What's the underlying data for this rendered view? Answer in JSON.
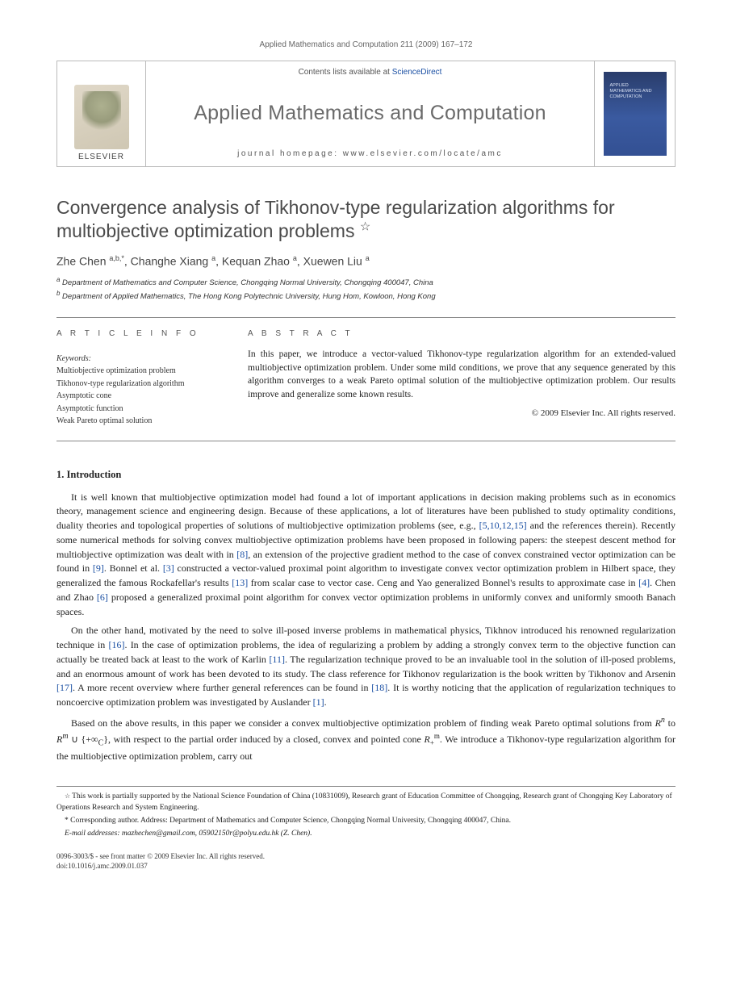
{
  "running_head": "Applied Mathematics and Computation 211 (2009) 167–172",
  "banner": {
    "contents_line_prefix": "Contents lists available at ",
    "contents_link": "ScienceDirect",
    "journal_name": "Applied Mathematics and Computation",
    "homepage_line": "journal homepage: www.elsevier.com/locate/amc",
    "elsevier": "ELSEVIER",
    "cover_text": "APPLIED MATHEMATICS AND COMPUTATION"
  },
  "title": "Convergence analysis of Tikhonov-type regularization algorithms for multiobjective optimization problems",
  "title_star": "☆",
  "authors_html": "Zhe Chen <sup>a,b,*</sup>, Changhe Xiang <sup>a</sup>, Kequan Zhao <sup>a</sup>, Xuewen Liu <sup>a</sup>",
  "affiliations": {
    "a": "Department of Mathematics and Computer Science, Chongqing Normal University, Chongqing 400047, China",
    "b": "Department of Applied Mathematics, The Hong Kong Polytechnic University, Hung Hom, Kowloon, Hong Kong"
  },
  "article_info_hd": "A R T I C L E   I N F O",
  "abstract_hd": "A B S T R A C T",
  "keywords_label": "Keywords:",
  "keywords": [
    "Multiobjective optimization problem",
    "Tikhonov-type regularization algorithm",
    "Asymptotic cone",
    "Asymptotic function",
    "Weak Pareto optimal solution"
  ],
  "abstract": "In this paper, we introduce a vector-valued Tikhonov-type regularization algorithm for an extended-valued multiobjective optimization problem. Under some mild conditions, we prove that any sequence generated by this algorithm converges to a weak Pareto optimal solution of the multiobjective optimization problem. Our results improve and generalize some known results.",
  "copyright_line": "© 2009 Elsevier Inc. All rights reserved.",
  "section1_head": "1. Introduction",
  "para1": "It is well known that multiobjective optimization model had found a lot of important applications in decision making problems such as in economics theory, management science and engineering design. Because of these applications, a lot of literatures have been published to study optimality conditions, duality theories and topological properties of solutions of multiobjective optimization problems (see, e.g., [5,10,12,15] and the references therein). Recently some numerical methods for solving convex multiobjective optimization problems have been proposed in following papers: the steepest descent method for multiobjective optimization was dealt with in [8], an extension of the projective gradient method to the case of convex constrained vector optimization can be found in [9]. Bonnel et al. [3] constructed a vector-valued proximal point algorithm to investigate convex vector optimization problem in Hilbert space, they generalized the famous Rockafellar's results [13] from scalar case to vector case. Ceng and Yao generalized Bonnel's results to approximate case in [4]. Chen and Zhao [6] proposed a generalized proximal point algorithm for convex vector optimization problems in uniformly convex and uniformly smooth Banach spaces.",
  "para2": "On the other hand, motivated by the need to solve ill-posed inverse problems in mathematical physics, Tikhnov introduced his renowned regularization technique in [16]. In the case of optimization problems, the idea of regularizing a problem by adding a strongly convex term to the objective function can actually be treated back at least to the work of Karlin [11]. The regularization technique proved to be an invaluable tool in the solution of ill-posed problems, and an enormous amount of work has been devoted to its study. The class reference for Tikhonov regularization is the book written by Tikhonov and Arsenin [17]. A more recent overview where further general references can be found in [18]. It is worthy noticing that the application of regularization techniques to noncoercive optimization problem was investigated by Auslander [1].",
  "para3_prefix": "Based on the above results, in this paper we consider a convex multiobjective optimization problem of finding weak Pareto optimal solutions from ",
  "para3_math": "Rⁿ to Rᵐ ∪ {+∞_C}, with respect to the partial order induced by a closed, convex and pointed cone R₊ᵐ",
  "para3_suffix": ". We introduce a Tikhonov-type regularization algorithm for the multiobjective optimization problem, carry out",
  "footnote_star": "This work is partially supported by the National Science Foundation of China (10831009), Research grant of Education Committee of Chongqing, Research grant of Chongqing Key Laboratory of Operations Research and System Engineering.",
  "footnote_corr": "Corresponding author. Address: Department of Mathematics and Computer Science, Chongqing Normal University, Chongqing 400047, China.",
  "emails_label": "E-mail addresses:",
  "emails": "mazhechen@gmail.com, 05902150r@polyu.edu.hk (Z. Chen).",
  "footer_line1": "0096-3003/$ - see front matter © 2009 Elsevier Inc. All rights reserved.",
  "footer_line2": "doi:10.1016/j.amc.2009.01.037",
  "colors": {
    "link": "#1a4fa3",
    "rule": "#888888",
    "title_gray": "#4a4a4a",
    "cover_bg_top": "#2a3d6b",
    "cover_bg_bot": "#335093"
  },
  "fontsizes": {
    "running_head": 10,
    "journal_name": 25,
    "title": 23,
    "authors": 14,
    "affil": 9.5,
    "abstract": 11.5,
    "body": 12,
    "footnote": 9.5,
    "footer": 9
  }
}
